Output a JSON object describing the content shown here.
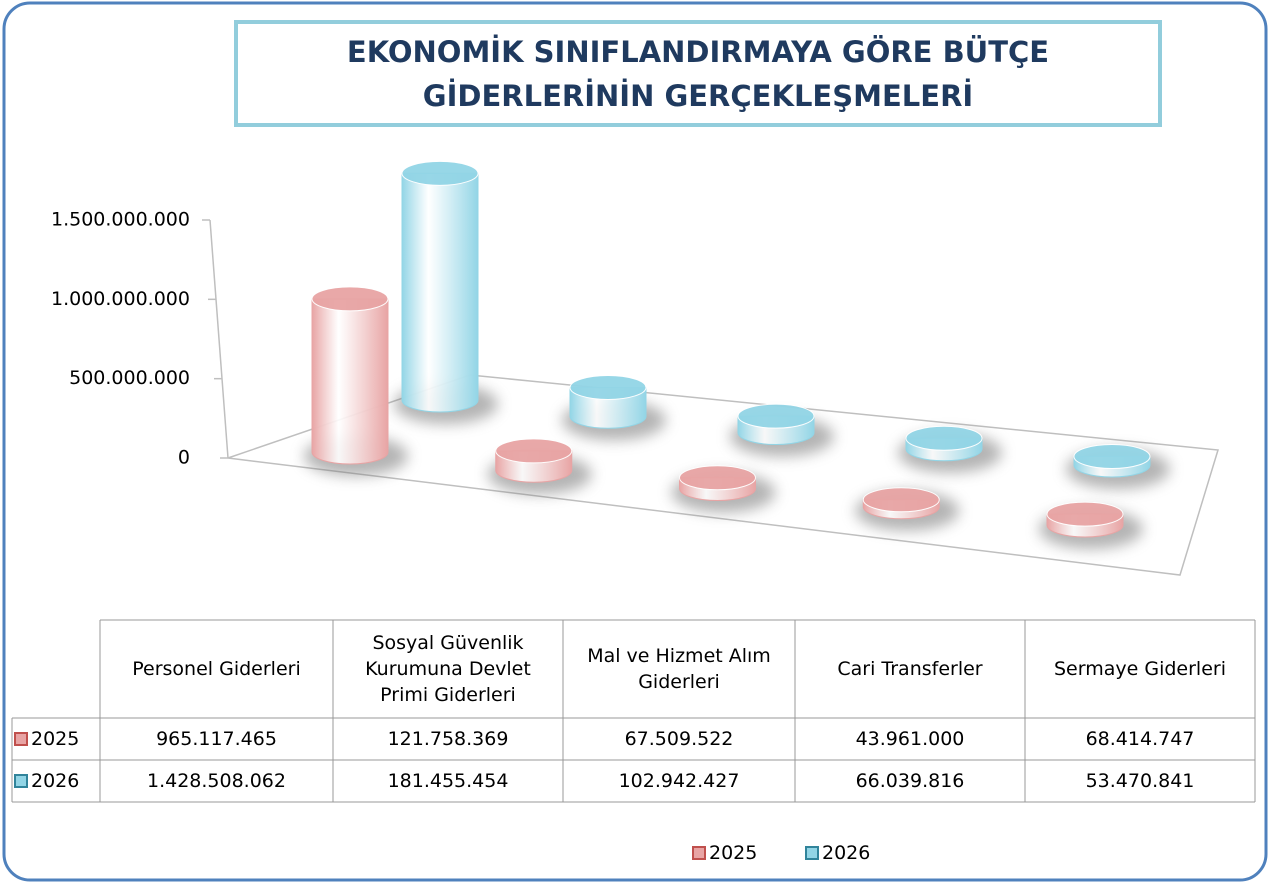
{
  "chart_data": {
    "type": "cylinder3d",
    "title": "EKONOMİK SINIFLANDIRMAYA GÖRE BÜTÇE GİDERLERİNİN GERÇEKLEŞMELERİ",
    "categories": [
      "Personel Giderleri",
      "Sosyal Güvenlik Kurumuna Devlet Primi Giderleri",
      "Mal ve Hizmet Alım Giderleri",
      "Cari Transferler",
      "Sermaye Giderleri"
    ],
    "series": [
      {
        "name": "2025",
        "color": "#e8a4a4",
        "values": [
          965117465,
          121758369,
          67509522,
          43961000,
          68414747
        ],
        "value_labels": [
          "965.117.465",
          "121.758.369",
          "67.509.522",
          "43.961.000",
          "68.414.747"
        ]
      },
      {
        "name": "2026",
        "color": "#92d5e6",
        "values": [
          1428508062,
          181455454,
          102942427,
          66039816,
          53470841
        ],
        "value_labels": [
          "1.428.508.062",
          "181.455.454",
          "102.942.427",
          "66.039.816",
          "53.470.841"
        ]
      }
    ],
    "ylim": [
      0,
      1500000000
    ],
    "yticks": [
      0,
      {
        "value": 500000000,
        "label": "500.000.000"
      },
      {
        "value": 1000000000,
        "label": "1.000.000.000"
      },
      {
        "value": 1500000000,
        "label": "1.500.000.000"
      }
    ],
    "legend": "bottom",
    "data_table": true
  }
}
